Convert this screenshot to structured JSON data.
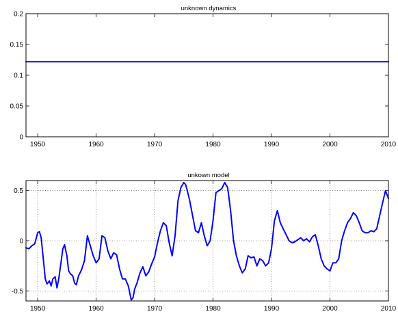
{
  "chart_data": [
    {
      "type": "line",
      "title": "unknown dynamics",
      "xlabel": "",
      "ylabel": "",
      "xlim": [
        1948,
        2010
      ],
      "ylim": [
        0,
        0.2
      ],
      "xticks": [
        "1950",
        "1960",
        "1970",
        "1980",
        "1990",
        "2000",
        "2010"
      ],
      "yticks": [
        "0",
        "0.05",
        "0.1",
        "0.15",
        "0.2"
      ],
      "grid": false,
      "line_color": "#0000ff",
      "x": [
        1948,
        2010
      ],
      "y": [
        0.122,
        0.122
      ]
    },
    {
      "type": "line",
      "title": "unkown model",
      "xlabel": "",
      "ylabel": "",
      "xlim": [
        1948,
        2010
      ],
      "ylim": [
        -0.6,
        0.6
      ],
      "xticks": [
        "1950",
        "1960",
        "1970",
        "1980",
        "1990",
        "2000",
        "2010"
      ],
      "yticks": [
        "-0.5",
        "0",
        "0.5"
      ],
      "grid": true,
      "line_color": "#0000ff",
      "x": [
        1948.0,
        1948.5,
        1949.0,
        1949.5,
        1950.0,
        1950.3,
        1950.6,
        1951.0,
        1951.3,
        1951.6,
        1952.0,
        1952.3,
        1952.6,
        1953.0,
        1953.3,
        1953.6,
        1954.0,
        1954.3,
        1954.6,
        1955.0,
        1955.3,
        1955.6,
        1956.0,
        1956.3,
        1956.6,
        1957.0,
        1957.5,
        1958.0,
        1958.5,
        1959.0,
        1959.5,
        1960.0,
        1960.5,
        1961.0,
        1961.5,
        1962.0,
        1962.5,
        1963.0,
        1963.5,
        1964.0,
        1964.5,
        1965.0,
        1965.5,
        1966.0,
        1966.3,
        1966.6,
        1967.0,
        1967.5,
        1968.0,
        1968.5,
        1969.0,
        1969.5,
        1970.0,
        1970.5,
        1971.0,
        1971.5,
        1972.0,
        1972.5,
        1973.0,
        1973.5,
        1974.0,
        1974.5,
        1975.0,
        1975.3,
        1975.6,
        1976.0,
        1976.5,
        1977.0,
        1977.5,
        1978.0,
        1978.5,
        1979.0,
        1979.5,
        1980.0,
        1980.5,
        1981.0,
        1981.5,
        1982.0,
        1982.5,
        1983.0,
        1983.5,
        1984.0,
        1984.5,
        1985.0,
        1985.5,
        1986.0,
        1986.5,
        1987.0,
        1987.5,
        1988.0,
        1988.5,
        1989.0,
        1989.5,
        1990.0,
        1990.5,
        1991.0,
        1991.5,
        1992.0,
        1992.5,
        1993.0,
        1993.5,
        1994.0,
        1994.5,
        1995.0,
        1995.5,
        1996.0,
        1996.5,
        1997.0,
        1997.5,
        1998.0,
        1998.5,
        1999.0,
        1999.5,
        2000.0,
        2000.5,
        2001.0,
        2001.5,
        2002.0,
        2002.5,
        2003.0,
        2003.5,
        2004.0,
        2004.5,
        2005.0,
        2005.5,
        2006.0,
        2006.5,
        2007.0,
        2007.5,
        2008.0,
        2008.5,
        2009.0,
        2009.5,
        2010.0
      ],
      "y": [
        -0.07,
        -0.08,
        -0.05,
        -0.03,
        0.08,
        0.09,
        0.03,
        -0.2,
        -0.38,
        -0.43,
        -0.4,
        -0.45,
        -0.38,
        -0.36,
        -0.47,
        -0.38,
        -0.21,
        -0.08,
        -0.04,
        -0.15,
        -0.3,
        -0.33,
        -0.35,
        -0.42,
        -0.44,
        -0.35,
        -0.29,
        -0.2,
        0.05,
        -0.05,
        -0.15,
        -0.22,
        -0.18,
        0.05,
        0.03,
        -0.1,
        -0.18,
        -0.12,
        -0.14,
        -0.28,
        -0.38,
        -0.38,
        -0.45,
        -0.59,
        -0.57,
        -0.48,
        -0.42,
        -0.32,
        -0.26,
        -0.35,
        -0.31,
        -0.23,
        -0.16,
        -0.02,
        0.1,
        0.18,
        0.15,
        -0.02,
        -0.15,
        0.05,
        0.4,
        0.53,
        0.58,
        0.56,
        0.5,
        0.4,
        0.25,
        0.1,
        0.08,
        0.18,
        0.05,
        -0.05,
        0.0,
        0.2,
        0.48,
        0.5,
        0.52,
        0.58,
        0.53,
        0.3,
        0.0,
        -0.15,
        -0.25,
        -0.32,
        -0.28,
        -0.15,
        -0.17,
        -0.16,
        -0.25,
        -0.18,
        -0.2,
        -0.25,
        -0.22,
        -0.08,
        0.2,
        0.3,
        0.18,
        0.12,
        0.06,
        0.0,
        -0.02,
        -0.01,
        0.01,
        0.03,
        0.0,
        0.02,
        -0.01,
        0.04,
        0.06,
        -0.05,
        -0.18,
        -0.25,
        -0.28,
        -0.3,
        -0.22,
        -0.22,
        -0.18,
        0.0,
        0.1,
        0.18,
        0.22,
        0.28,
        0.25,
        0.18,
        0.1,
        0.08,
        0.08,
        0.1,
        0.09,
        0.12,
        0.25,
        0.38,
        0.5,
        0.42
      ]
    }
  ]
}
